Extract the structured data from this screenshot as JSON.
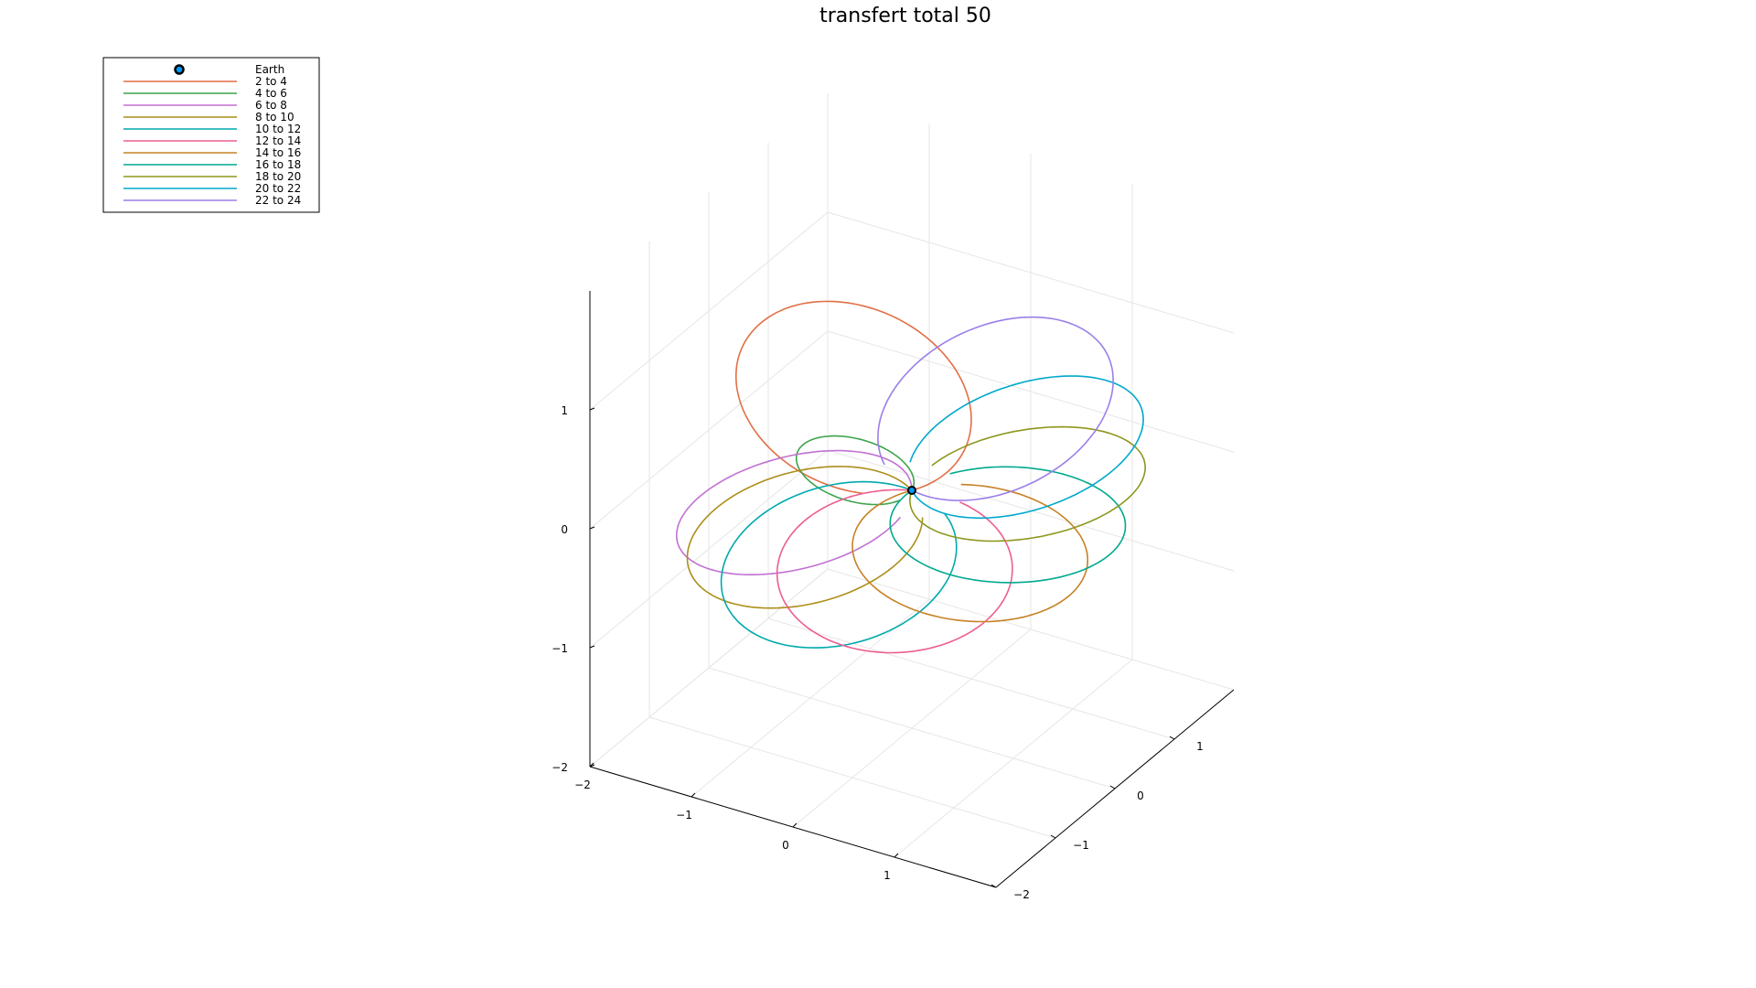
{
  "chart_data": {
    "type": "line",
    "title": "transfert total 50",
    "xlabel": "",
    "ylabel": "",
    "zlabel": "",
    "xlim": [
      -2,
      2
    ],
    "ylim": [
      -2,
      2
    ],
    "zlim": [
      -2,
      2
    ],
    "x_ticks": [
      "−2",
      "−1",
      "0",
      "1"
    ],
    "y_ticks": [
      "−2",
      "−1",
      "0",
      "1"
    ],
    "z_ticks": [
      "−2",
      "−1",
      "0",
      "1"
    ],
    "grid": true,
    "legend_position": "top-left",
    "marker": {
      "name": "Earth",
      "x": 0,
      "y": 0,
      "z": 0,
      "color": "#009af9"
    },
    "series": [
      {
        "name": "2 to 4",
        "color": "#e26f46",
        "orbit": {
          "radius": 1.0,
          "theta": 150,
          "incl": 0.35
        }
      },
      {
        "name": "4 to 6",
        "color": "#3da44d",
        "orbit": {
          "radius": 0.5,
          "theta": 195,
          "incl": 0.1
        }
      },
      {
        "name": "6 to 8",
        "color": "#c271d2",
        "orbit": {
          "radius": 1.0,
          "theta": 210,
          "incl": -0.2
        }
      },
      {
        "name": "8 to 10",
        "color": "#ac8e18",
        "orbit": {
          "radius": 1.0,
          "theta": 235,
          "incl": -0.2
        }
      },
      {
        "name": "10 to 12",
        "color": "#00a9ad",
        "orbit": {
          "radius": 1.0,
          "theta": 262,
          "incl": -0.25
        }
      },
      {
        "name": "12 to 14",
        "color": "#ed5d92",
        "orbit": {
          "radius": 1.0,
          "theta": 292,
          "incl": -0.2
        }
      },
      {
        "name": "14 to 16",
        "color": "#c68225",
        "orbit": {
          "radius": 1.0,
          "theta": 330,
          "incl": -0.1
        }
      },
      {
        "name": "16 to 18",
        "color": "#00a98d",
        "orbit": {
          "radius": 1.0,
          "theta": 355,
          "incl": 0.0
        }
      },
      {
        "name": "18 to 20",
        "color": "#8e971d",
        "orbit": {
          "radius": 1.0,
          "theta": 20,
          "incl": 0.15
        }
      },
      {
        "name": "20 to 22",
        "color": "#00a8cb",
        "orbit": {
          "radius": 1.0,
          "theta": 45,
          "incl": 0.25
        }
      },
      {
        "name": "22 to 24",
        "color": "#9b7fe9",
        "orbit": {
          "radius": 1.0,
          "theta": 75,
          "incl": 0.35
        }
      }
    ]
  }
}
